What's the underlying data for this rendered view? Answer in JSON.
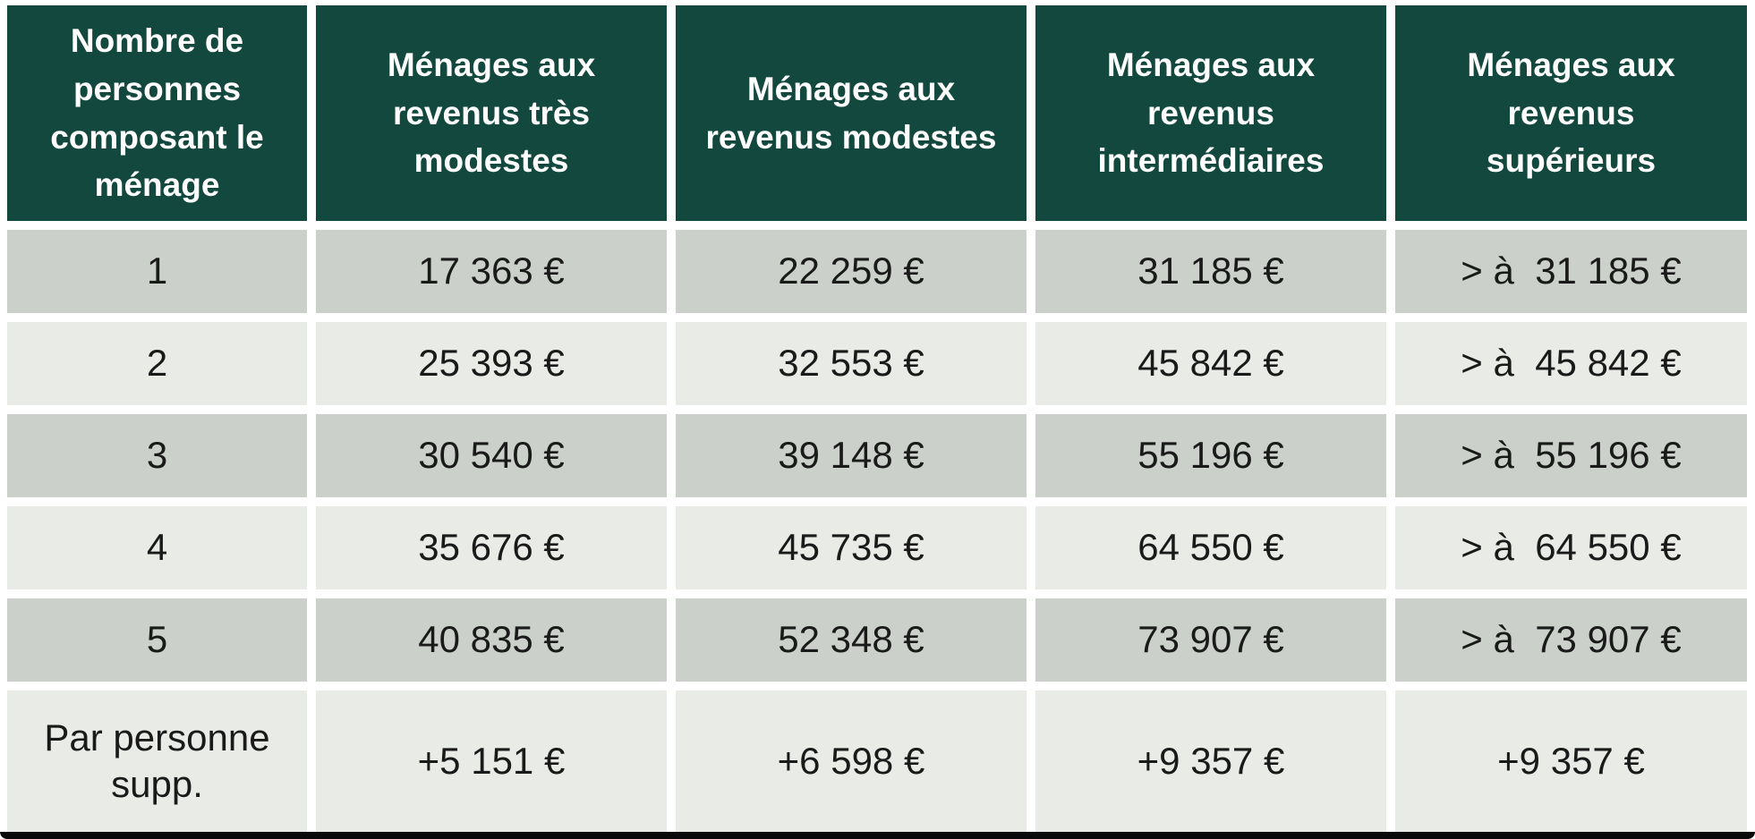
{
  "table": {
    "columns": [
      {
        "header": "Nombre de personnes composant le ménage"
      },
      {
        "header": "Ménages aux revenus très modestes"
      },
      {
        "header": "Ménages aux revenus modestes"
      },
      {
        "header": "Ménages aux revenus intermédiaires"
      },
      {
        "header": "Ménages aux revenus supérieurs"
      }
    ],
    "rows": [
      {
        "label": "1",
        "values": [
          "17 363 €",
          "22 259 €",
          "31 185 €",
          "> à  31 185 €"
        ]
      },
      {
        "label": "2",
        "values": [
          "25 393 €",
          "32 553 €",
          "45 842 €",
          "> à  45 842 €"
        ]
      },
      {
        "label": "3",
        "values": [
          "30 540 €",
          "39 148 €",
          "55 196 €",
          "> à  55 196 €"
        ]
      },
      {
        "label": "4",
        "values": [
          "35 676 €",
          "45 735 €",
          "64 550 €",
          "> à  64 550 €"
        ]
      },
      {
        "label": "5",
        "values": [
          "40 835 €",
          "52 348 €",
          "73 907 €",
          "> à  73 907 €"
        ]
      },
      {
        "label": "Par personne supp.",
        "values": [
          "+5 151 €",
          "+6 598 €",
          "+9 357 €",
          "+9 357 €"
        ]
      }
    ]
  },
  "colors": {
    "header_bg": "#12483e",
    "header_text": "#ffffff",
    "row_odd_bg": "#cbd1ca",
    "row_even_bg": "#e9ebe7",
    "body_text": "#1a1a1a",
    "bottom_bar": "#0a0a0a"
  }
}
